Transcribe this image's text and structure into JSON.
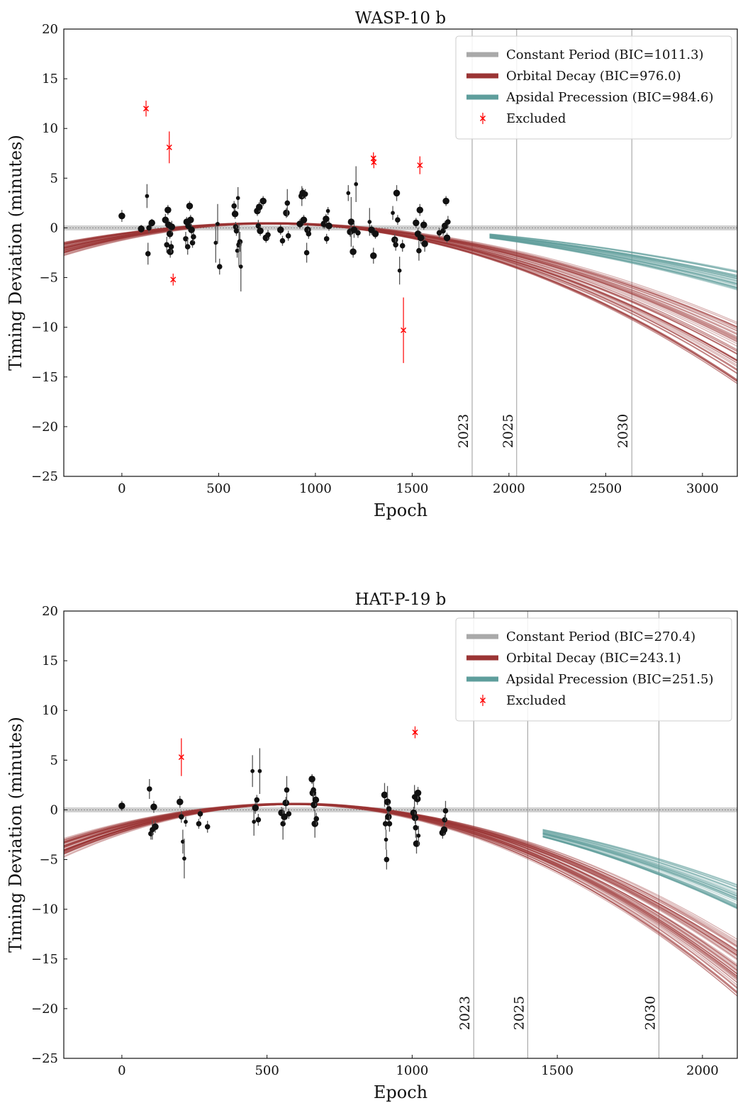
{
  "chart_data": [
    {
      "type": "scatter",
      "title": "WASP-10 b",
      "xlabel": "Epoch",
      "ylabel": "Timing Deviation (minutes)",
      "xlim": [
        -300,
        3180
      ],
      "ylim": [
        -25,
        20
      ],
      "xticks": [
        0,
        500,
        1000,
        1500,
        2000,
        2500,
        3000
      ],
      "yticks": [
        20,
        15,
        10,
        5,
        0,
        -5,
        -10,
        -15,
        -20,
        -25
      ],
      "grid": false,
      "legend_position": "top-right",
      "legend": [
        {
          "label": "Constant Period (BIC=1011.3)",
          "color": "#a9a9a9",
          "kind": "line"
        },
        {
          "label": "Orbital Decay (BIC=976.0)",
          "color": "#9b3535",
          "kind": "line"
        },
        {
          "label": "Apsidal Precession (BIC=984.6)",
          "color": "#5e9e9c",
          "kind": "line"
        },
        {
          "label": "Excluded",
          "color": "#ff0000",
          "kind": "marker"
        }
      ],
      "year_lines": [
        {
          "label": "2023",
          "epoch": 1810
        },
        {
          "label": "2025",
          "epoch": 2040
        },
        {
          "label": "2030",
          "epoch": 2635
        }
      ],
      "models": {
        "constant": {
          "color": "#a9a9a9",
          "y": 0
        },
        "decay": {
          "color": "#9b3535",
          "vertex_x": 760,
          "vertex_y": 0.45,
          "curvature_range": [
            1.7e-06,
            2.8e-06
          ]
        },
        "apsidal": {
          "color": "#5e9e9c",
          "start_x": 1900,
          "end_values_at_xmax": [
            -4.3,
            -6.3
          ]
        }
      },
      "points": [
        {
          "x": 0,
          "y": 1.2,
          "err": 0.6,
          "size": 5
        },
        {
          "x": 100,
          "y": -0.1,
          "err": 0.4,
          "size": 5
        },
        {
          "x": 130,
          "y": 3.2,
          "err": 1.2,
          "size": 3
        },
        {
          "x": 135,
          "y": -2.6,
          "err": 1.1,
          "size": 4
        },
        {
          "x": 140,
          "y": 0.0,
          "err": 0.5,
          "size": 4
        },
        {
          "x": 155,
          "y": 0.5,
          "err": 0.4,
          "size": 5
        },
        {
          "x": 225,
          "y": 0.8,
          "err": 0.6,
          "size": 5
        },
        {
          "x": 232,
          "y": -1.7,
          "err": 0.8,
          "size": 4
        },
        {
          "x": 238,
          "y": 1.8,
          "err": 0.5,
          "size": 5
        },
        {
          "x": 242,
          "y": 0.3,
          "err": 0.5,
          "size": 5
        },
        {
          "x": 248,
          "y": -0.6,
          "err": 0.5,
          "size": 5
        },
        {
          "x": 250,
          "y": -2.4,
          "err": 0.6,
          "size": 5
        },
        {
          "x": 255,
          "y": -1.9,
          "err": 0.6,
          "size": 4
        },
        {
          "x": 258,
          "y": 0.1,
          "err": 0.6,
          "size": 5
        },
        {
          "x": 330,
          "y": -1.1,
          "err": 0.7,
          "size": 4
        },
        {
          "x": 335,
          "y": 0.6,
          "err": 0.5,
          "size": 5
        },
        {
          "x": 340,
          "y": -1.9,
          "err": 0.8,
          "size": 4
        },
        {
          "x": 345,
          "y": 0.2,
          "err": 0.5,
          "size": 5
        },
        {
          "x": 350,
          "y": 2.2,
          "err": 0.5,
          "size": 5
        },
        {
          "x": 355,
          "y": 0.8,
          "err": 0.5,
          "size": 5
        },
        {
          "x": 360,
          "y": -0.2,
          "err": 0.5,
          "size": 5
        },
        {
          "x": 365,
          "y": -1.5,
          "err": 0.5,
          "size": 4
        },
        {
          "x": 370,
          "y": -0.9,
          "err": 0.5,
          "size": 4
        },
        {
          "x": 485,
          "y": -1.5,
          "err": 2.0,
          "size": 3
        },
        {
          "x": 495,
          "y": 0.4,
          "err": 2.0,
          "size": 3
        },
        {
          "x": 505,
          "y": -3.9,
          "err": 0.8,
          "size": 4
        },
        {
          "x": 580,
          "y": 2.2,
          "err": 0.5,
          "size": 4
        },
        {
          "x": 585,
          "y": 1.4,
          "err": 0.5,
          "size": 5
        },
        {
          "x": 588,
          "y": 0.1,
          "err": 0.5,
          "size": 4
        },
        {
          "x": 592,
          "y": -0.3,
          "err": 0.5,
          "size": 4
        },
        {
          "x": 596,
          "y": -2.3,
          "err": 0.7,
          "size": 3
        },
        {
          "x": 600,
          "y": 3.0,
          "err": 1.1,
          "size": 3
        },
        {
          "x": 605,
          "y": -1.7,
          "err": 2.2,
          "size": 4
        },
        {
          "x": 610,
          "y": -1.4,
          "err": 1.0,
          "size": 4
        },
        {
          "x": 615,
          "y": -3.9,
          "err": 2.5,
          "size": 3
        },
        {
          "x": 700,
          "y": 1.7,
          "err": 0.5,
          "size": 5
        },
        {
          "x": 705,
          "y": 0.2,
          "err": 0.6,
          "size": 4
        },
        {
          "x": 710,
          "y": 2.1,
          "err": 0.5,
          "size": 5
        },
        {
          "x": 715,
          "y": -0.3,
          "err": 0.5,
          "size": 5
        },
        {
          "x": 730,
          "y": 2.7,
          "err": 0.5,
          "size": 5
        },
        {
          "x": 745,
          "y": -1.0,
          "err": 0.5,
          "size": 5
        },
        {
          "x": 755,
          "y": -0.7,
          "err": 0.5,
          "size": 4
        },
        {
          "x": 820,
          "y": -0.2,
          "err": 0.5,
          "size": 5
        },
        {
          "x": 830,
          "y": -1.3,
          "err": 0.5,
          "size": 4
        },
        {
          "x": 850,
          "y": 1.5,
          "err": 0.5,
          "size": 5
        },
        {
          "x": 855,
          "y": 2.5,
          "err": 1.4,
          "size": 4
        },
        {
          "x": 860,
          "y": -0.8,
          "err": 0.5,
          "size": 4
        },
        {
          "x": 920,
          "y": 0.4,
          "err": 0.5,
          "size": 5
        },
        {
          "x": 930,
          "y": 3.2,
          "err": 1.0,
          "size": 5
        },
        {
          "x": 935,
          "y": 3.5,
          "err": 0.5,
          "size": 5
        },
        {
          "x": 940,
          "y": 0.8,
          "err": 0.5,
          "size": 5
        },
        {
          "x": 948,
          "y": 3.4,
          "err": 0.5,
          "size": 4
        },
        {
          "x": 955,
          "y": -2.5,
          "err": 1.0,
          "size": 4
        },
        {
          "x": 960,
          "y": -0.2,
          "err": 0.6,
          "size": 5
        },
        {
          "x": 965,
          "y": -0.6,
          "err": 0.5,
          "size": 4
        },
        {
          "x": 1045,
          "y": 0.4,
          "err": 0.5,
          "size": 5
        },
        {
          "x": 1055,
          "y": 0.9,
          "err": 0.5,
          "size": 5
        },
        {
          "x": 1058,
          "y": -1.1,
          "err": 0.5,
          "size": 4
        },
        {
          "x": 1065,
          "y": 1.7,
          "err": 0.4,
          "size": 3
        },
        {
          "x": 1070,
          "y": 0.2,
          "err": 0.5,
          "size": 5
        },
        {
          "x": 1170,
          "y": 3.5,
          "err": 0.8,
          "size": 3
        },
        {
          "x": 1180,
          "y": -0.4,
          "err": 0.5,
          "size": 5
        },
        {
          "x": 1185,
          "y": 0.6,
          "err": 2.5,
          "size": 5
        },
        {
          "x": 1195,
          "y": -2.4,
          "err": 0.6,
          "size": 5
        },
        {
          "x": 1200,
          "y": -0.2,
          "err": 0.8,
          "size": 5
        },
        {
          "x": 1210,
          "y": 4.4,
          "err": 1.8,
          "size": 3
        },
        {
          "x": 1220,
          "y": -0.5,
          "err": 0.5,
          "size": 4
        },
        {
          "x": 1280,
          "y": 0.6,
          "err": 1.4,
          "size": 3
        },
        {
          "x": 1290,
          "y": -0.2,
          "err": 0.5,
          "size": 5
        },
        {
          "x": 1300,
          "y": -2.8,
          "err": 0.8,
          "size": 5
        },
        {
          "x": 1310,
          "y": -0.6,
          "err": 0.5,
          "size": 5
        },
        {
          "x": 1400,
          "y": 1.5,
          "err": 0.7,
          "size": 3
        },
        {
          "x": 1410,
          "y": -1.2,
          "err": 0.6,
          "size": 5
        },
        {
          "x": 1415,
          "y": -1.7,
          "err": 0.6,
          "size": 4
        },
        {
          "x": 1420,
          "y": 3.5,
          "err": 0.8,
          "size": 5
        },
        {
          "x": 1425,
          "y": 0.8,
          "err": 0.5,
          "size": 4
        },
        {
          "x": 1435,
          "y": -4.3,
          "err": 1.4,
          "size": 3
        },
        {
          "x": 1450,
          "y": -1.8,
          "err": 0.6,
          "size": 4
        },
        {
          "x": 1520,
          "y": 0.5,
          "err": 0.5,
          "size": 5
        },
        {
          "x": 1530,
          "y": -0.6,
          "err": 0.6,
          "size": 5
        },
        {
          "x": 1535,
          "y": -2.3,
          "err": 1.0,
          "size": 4
        },
        {
          "x": 1540,
          "y": 1.8,
          "err": 0.6,
          "size": 5
        },
        {
          "x": 1545,
          "y": -1.0,
          "err": 0.6,
          "size": 5
        },
        {
          "x": 1560,
          "y": 0.3,
          "err": 0.5,
          "size": 5
        },
        {
          "x": 1565,
          "y": -1.6,
          "err": 0.8,
          "size": 5
        },
        {
          "x": 1640,
          "y": -0.5,
          "err": 0.5,
          "size": 4
        },
        {
          "x": 1660,
          "y": -0.3,
          "err": 0.5,
          "size": 4
        },
        {
          "x": 1670,
          "y": 0.2,
          "err": 0.5,
          "size": 5
        },
        {
          "x": 1675,
          "y": 2.7,
          "err": 0.5,
          "size": 5
        },
        {
          "x": 1680,
          "y": -1.0,
          "err": 0.5,
          "size": 5
        },
        {
          "x": 1685,
          "y": 0.6,
          "err": 0.6,
          "size": 4
        }
      ],
      "excluded": [
        {
          "x": 125,
          "y": 12.0,
          "err": 0.8
        },
        {
          "x": 245,
          "y": 8.1,
          "err": 1.6
        },
        {
          "x": 265,
          "y": -5.2,
          "err": 0.6
        },
        {
          "x": 1300,
          "y": 7.0,
          "err": 0.6
        },
        {
          "x": 1302,
          "y": 6.6,
          "err": 0.6
        },
        {
          "x": 1455,
          "y": -10.3,
          "err": 3.3
        },
        {
          "x": 1540,
          "y": 6.3,
          "err": 0.9
        }
      ]
    },
    {
      "type": "scatter",
      "title": "HAT-P-19 b",
      "xlabel": "Epoch",
      "ylabel": "Timing Deviation (minutes)",
      "xlim": [
        -200,
        2120
      ],
      "ylim": [
        -25,
        20
      ],
      "xticks": [
        0,
        500,
        1000,
        1500,
        2000
      ],
      "yticks": [
        20,
        15,
        10,
        5,
        0,
        -5,
        -10,
        -15,
        -20,
        -25
      ],
      "grid": false,
      "legend_position": "top-right",
      "legend": [
        {
          "label": "Constant Period (BIC=270.4)",
          "color": "#a9a9a9",
          "kind": "line"
        },
        {
          "label": "Orbital Decay (BIC=243.1)",
          "color": "#9b3535",
          "kind": "line"
        },
        {
          "label": "Apsidal Precession (BIC=251.5)",
          "color": "#5e9e9c",
          "kind": "line"
        },
        {
          "label": "Excluded",
          "color": "#ff0000",
          "kind": "marker"
        }
      ],
      "year_lines": [
        {
          "label": "2023",
          "epoch": 1212
        },
        {
          "label": "2025",
          "epoch": 1398
        },
        {
          "label": "2030",
          "epoch": 1850
        }
      ],
      "models": {
        "constant": {
          "color": "#a9a9a9",
          "y": 0
        },
        "decay": {
          "color": "#9b3535",
          "vertex_x": 590,
          "vertex_y": 0.6,
          "curvature_range": [
            5.8e-06,
            8.3e-06
          ]
        },
        "apsidal": {
          "color": "#5e9e9c",
          "start_x": 1450,
          "end_values_at_xmax": [
            -7.5,
            -10.0
          ]
        }
      },
      "points": [
        {
          "x": 0,
          "y": 0.4,
          "err": 0.5,
          "size": 5
        },
        {
          "x": 95,
          "y": 2.1,
          "err": 1.0,
          "size": 4
        },
        {
          "x": 100,
          "y": -2.4,
          "err": 0.6,
          "size": 4
        },
        {
          "x": 105,
          "y": -2.0,
          "err": 1.0,
          "size": 4
        },
        {
          "x": 110,
          "y": 0.3,
          "err": 0.6,
          "size": 5
        },
        {
          "x": 115,
          "y": -1.7,
          "err": 0.6,
          "size": 5
        },
        {
          "x": 200,
          "y": 0.8,
          "err": 0.6,
          "size": 5
        },
        {
          "x": 205,
          "y": -0.7,
          "err": 0.6,
          "size": 4
        },
        {
          "x": 210,
          "y": -3.2,
          "err": 1.2,
          "size": 3
        },
        {
          "x": 215,
          "y": -4.9,
          "err": 2.0,
          "size": 3
        },
        {
          "x": 220,
          "y": -1.2,
          "err": 0.5,
          "size": 3
        },
        {
          "x": 265,
          "y": -1.4,
          "err": 0.5,
          "size": 4
        },
        {
          "x": 270,
          "y": -0.4,
          "err": 0.5,
          "size": 4
        },
        {
          "x": 295,
          "y": -1.7,
          "err": 0.6,
          "size": 4
        },
        {
          "x": 450,
          "y": 3.9,
          "err": 1.6,
          "size": 3
        },
        {
          "x": 455,
          "y": -1.2,
          "err": 1.4,
          "size": 3
        },
        {
          "x": 460,
          "y": 0.2,
          "err": 0.6,
          "size": 5
        },
        {
          "x": 465,
          "y": 1.0,
          "err": 0.5,
          "size": 4
        },
        {
          "x": 470,
          "y": -1.0,
          "err": 0.6,
          "size": 4
        },
        {
          "x": 475,
          "y": 3.9,
          "err": 2.3,
          "size": 3
        },
        {
          "x": 550,
          "y": -0.3,
          "err": 0.6,
          "size": 5
        },
        {
          "x": 555,
          "y": -1.4,
          "err": 1.6,
          "size": 4
        },
        {
          "x": 560,
          "y": -0.7,
          "err": 0.6,
          "size": 5
        },
        {
          "x": 565,
          "y": 0.7,
          "err": 0.6,
          "size": 5
        },
        {
          "x": 568,
          "y": 2.0,
          "err": 1.4,
          "size": 4
        },
        {
          "x": 575,
          "y": -0.4,
          "err": 0.5,
          "size": 4
        },
        {
          "x": 655,
          "y": 3.1,
          "err": 0.5,
          "size": 5
        },
        {
          "x": 658,
          "y": 1.7,
          "err": 0.6,
          "size": 5
        },
        {
          "x": 660,
          "y": 2.0,
          "err": 0.8,
          "size": 4
        },
        {
          "x": 662,
          "y": 0.5,
          "err": 0.6,
          "size": 5
        },
        {
          "x": 665,
          "y": -1.4,
          "err": 1.4,
          "size": 5
        },
        {
          "x": 668,
          "y": 1.0,
          "err": 0.6,
          "size": 5
        },
        {
          "x": 670,
          "y": -0.9,
          "err": 0.6,
          "size": 4
        },
        {
          "x": 905,
          "y": 1.5,
          "err": 1.2,
          "size": 5
        },
        {
          "x": 908,
          "y": -1.4,
          "err": 0.6,
          "size": 4
        },
        {
          "x": 910,
          "y": -3.0,
          "err": 1.0,
          "size": 3
        },
        {
          "x": 912,
          "y": -5.0,
          "err": 1.0,
          "size": 4
        },
        {
          "x": 915,
          "y": 0.8,
          "err": 1.6,
          "size": 5
        },
        {
          "x": 918,
          "y": -0.7,
          "err": 0.6,
          "size": 5
        },
        {
          "x": 920,
          "y": 0.1,
          "err": 0.6,
          "size": 4
        },
        {
          "x": 922,
          "y": -1.4,
          "err": 0.8,
          "size": 4
        },
        {
          "x": 1005,
          "y": -0.3,
          "err": 0.6,
          "size": 5
        },
        {
          "x": 1008,
          "y": 1.3,
          "err": 1.2,
          "size": 4
        },
        {
          "x": 1010,
          "y": -0.8,
          "err": 0.6,
          "size": 5
        },
        {
          "x": 1012,
          "y": -1.8,
          "err": 1.0,
          "size": 4
        },
        {
          "x": 1015,
          "y": -3.4,
          "err": 1.0,
          "size": 5
        },
        {
          "x": 1018,
          "y": 1.1,
          "err": 0.6,
          "size": 5
        },
        {
          "x": 1020,
          "y": 1.7,
          "err": 0.6,
          "size": 5
        },
        {
          "x": 1022,
          "y": -2.6,
          "err": 1.0,
          "size": 3
        },
        {
          "x": 1105,
          "y": -2.3,
          "err": 0.6,
          "size": 5
        },
        {
          "x": 1110,
          "y": -2.0,
          "err": 0.6,
          "size": 5
        },
        {
          "x": 1112,
          "y": -1.0,
          "err": 0.5,
          "size": 4
        },
        {
          "x": 1115,
          "y": -0.1,
          "err": 1.0,
          "size": 4
        }
      ],
      "excluded": [
        {
          "x": 205,
          "y": 5.3,
          "err": 1.9
        },
        {
          "x": 1010,
          "y": 7.8,
          "err": 0.6
        }
      ]
    }
  ]
}
